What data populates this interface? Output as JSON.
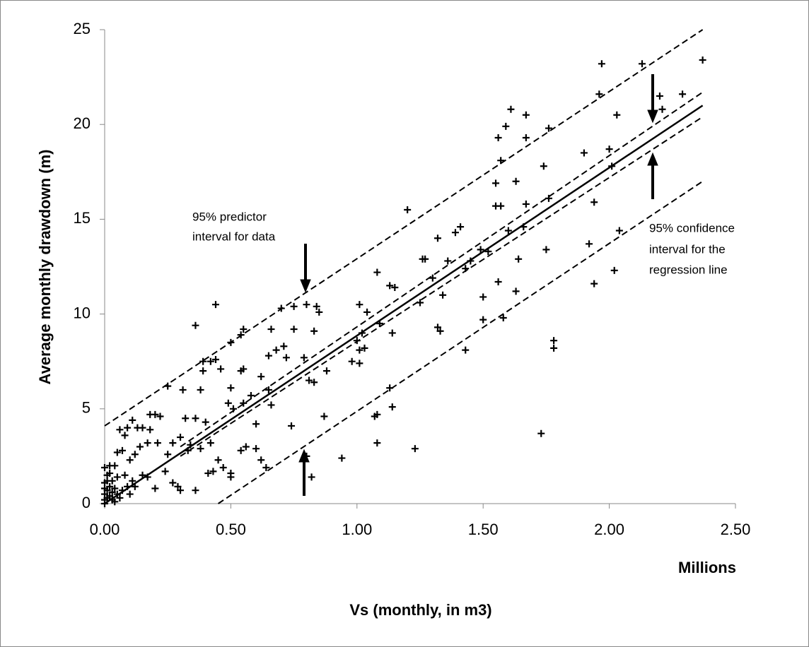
{
  "chart_data": {
    "type": "scatter",
    "x_label": "Vs (monthly, in m3)",
    "x_unit_label": "Millions",
    "y_label": "Average monthly drawdown (m)",
    "xlim": [
      0,
      2.5
    ],
    "ylim": [
      0,
      25
    ],
    "xticks": [
      {
        "value": 0,
        "label": "0.00"
      },
      {
        "value": 0.5,
        "label": "0.50"
      },
      {
        "value": 1,
        "label": "1.00"
      },
      {
        "value": 1.5,
        "label": "1.50"
      },
      {
        "value": 2,
        "label": "2.00"
      },
      {
        "value": 2.5,
        "label": "2.50"
      }
    ],
    "yticks": [
      0,
      5,
      10,
      15,
      20,
      25
    ],
    "color": "#000000",
    "points": {
      "x": [
        2.37,
        2.13,
        1.97,
        1.96,
        2.2,
        2.29,
        2.21,
        2.03,
        1.61,
        1.67,
        1.59,
        1.67,
        1.76,
        1.56,
        1.57,
        1.9,
        2.0,
        2.01,
        1.74,
        1.55,
        1.63,
        1.76,
        1.94,
        1.55,
        1.57,
        1.67,
        1.6,
        1.66,
        2.04,
        1.2,
        1.41,
        1.39,
        1.32,
        1.36,
        1.26,
        1.27,
        1.64,
        1.43,
        1.45,
        1.49,
        1.52,
        1.08,
        1.13,
        1.15,
        1.3,
        1.56,
        1.63,
        1.75,
        1.92,
        1.94,
        2.02,
        1.34,
        1.25,
        1.5,
        1.01,
        1.04,
        1.09,
        1.14,
        1.32,
        1.33,
        1.5,
        1.58,
        1.02,
        1.0,
        1.03,
        1.01,
        0.98,
        1.01,
        1.43,
        1.78,
        1.78,
        1.13,
        1.14,
        1.08,
        1.07,
        1.08,
        1.23,
        1.73,
        0.94,
        0.87,
        0.85,
        0.84,
        0.8,
        0.75,
        0.7,
        0.44,
        0.75,
        0.66,
        0.55,
        0.54,
        0.5,
        0.36,
        0.71,
        0.68,
        0.83,
        0.88,
        0.72,
        0.79,
        0.81,
        0.83,
        0.65,
        0.55,
        0.54,
        0.46,
        0.44,
        0.42,
        0.39,
        0.39,
        0.38,
        0.31,
        0.25,
        0.62,
        0.5,
        0.65,
        0.6,
        0.58,
        0.55,
        0.51,
        0.49,
        0.66,
        0.74,
        0.6,
        0.56,
        0.54,
        0.5,
        0.5,
        0.47,
        0.45,
        0.43,
        0.41,
        0.4,
        0.36,
        0.32,
        0.42,
        0.38,
        0.33,
        0.34,
        0.3,
        0.27,
        0.25,
        0.24,
        0.22,
        0.2,
        0.18,
        0.18,
        0.15,
        0.13,
        0.11,
        0.09,
        0.08,
        0.06,
        0.21,
        0.17,
        0.14,
        0.12,
        0.1,
        0.07,
        0.05,
        0.04,
        0.02,
        0.0,
        0.01,
        0.03,
        0.05,
        0.08,
        0.11,
        0.15,
        0.17,
        0.2,
        0.3,
        0.29,
        0.36,
        0.27,
        0.62,
        0.64,
        0.82,
        0.8,
        0.0,
        0.0,
        0.0,
        0.0,
        0.01,
        0.01,
        0.02,
        0.02,
        0.03,
        0.03,
        0.04,
        0.05,
        0.06,
        0.07,
        0.09,
        0.1,
        0.12,
        0.0,
        0.01,
        0.02,
        0.04
      ],
      "values": [
        23.4,
        23.2,
        23.2,
        21.6,
        21.5,
        21.6,
        20.8,
        20.5,
        20.8,
        20.5,
        19.9,
        19.3,
        19.8,
        19.3,
        18.1,
        18.5,
        18.7,
        17.8,
        17.8,
        16.9,
        17.0,
        16.1,
        15.9,
        15.7,
        15.7,
        15.8,
        14.4,
        14.6,
        14.4,
        15.5,
        14.6,
        14.3,
        14.0,
        12.8,
        12.9,
        12.9,
        12.9,
        12.4,
        12.8,
        13.4,
        13.3,
        12.2,
        11.5,
        11.4,
        11.9,
        11.7,
        11.2,
        13.4,
        13.7,
        11.6,
        12.3,
        11.0,
        10.6,
        10.9,
        10.5,
        10.1,
        9.5,
        9.0,
        9.3,
        9.1,
        9.7,
        9.8,
        9.0,
        8.6,
        8.2,
        8.1,
        7.5,
        7.4,
        8.1,
        8.6,
        8.2,
        6.1,
        5.1,
        4.7,
        4.6,
        3.2,
        2.9,
        3.7,
        2.4,
        4.6,
        10.1,
        10.4,
        10.5,
        10.4,
        10.3,
        10.5,
        9.2,
        9.2,
        9.2,
        8.9,
        8.5,
        9.4,
        8.3,
        8.1,
        9.1,
        7.0,
        7.7,
        7.7,
        6.5,
        6.4,
        7.8,
        7.1,
        7.0,
        7.1,
        7.6,
        7.5,
        7.5,
        7.0,
        6.0,
        6.0,
        6.2,
        6.7,
        6.1,
        6.0,
        4.2,
        5.7,
        5.3,
        5.0,
        5.3,
        5.2,
        4.1,
        2.9,
        3.0,
        2.8,
        1.6,
        1.4,
        1.9,
        2.3,
        1.7,
        1.6,
        4.3,
        4.5,
        4.5,
        3.2,
        2.9,
        2.8,
        3.1,
        3.5,
        3.2,
        2.6,
        1.7,
        4.6,
        4.7,
        4.7,
        3.9,
        4.0,
        4.0,
        4.4,
        4.0,
        3.6,
        3.9,
        3.2,
        3.2,
        3.0,
        2.6,
        2.3,
        2.8,
        2.7,
        2.0,
        2.0,
        1.9,
        1.5,
        1.2,
        1.4,
        1.5,
        1.2,
        1.5,
        1.4,
        0.8,
        0.7,
        0.9,
        0.7,
        1.1,
        2.3,
        1.9,
        1.4,
        2.5,
        0.2,
        0.5,
        0.8,
        1.1,
        0.3,
        0.7,
        0.4,
        0.9,
        0.6,
        0.2,
        0.8,
        0.5,
        0.3,
        0.7,
        0.9,
        0.5,
        0.9,
        0.0,
        1.2,
        1.6,
        0.1
      ]
    },
    "lines": [
      {
        "x": [
          0,
          2.37
        ],
        "values": [
          0,
          21.0
        ],
        "style": "solid"
      },
      {
        "x": [
          0.3,
          2.37
        ],
        "values": [
          3.0,
          21.7
        ],
        "style": "dashed"
      },
      {
        "x": [
          0.3,
          2.37
        ],
        "values": [
          2.5,
          20.4
        ],
        "style": "dashed"
      },
      {
        "x": [
          0,
          2.37
        ],
        "values": [
          4.1,
          25
        ],
        "style": "dashed"
      },
      {
        "x": [
          0.45,
          2.37
        ],
        "values": [
          0,
          17.0
        ],
        "style": "dashed"
      }
    ],
    "annotations": [
      {
        "lines": [
          "95% predictor",
          "interval  for data"
        ]
      },
      {
        "lines": [
          "95% confidence",
          "interval  for the",
          "regression line"
        ]
      }
    ]
  }
}
